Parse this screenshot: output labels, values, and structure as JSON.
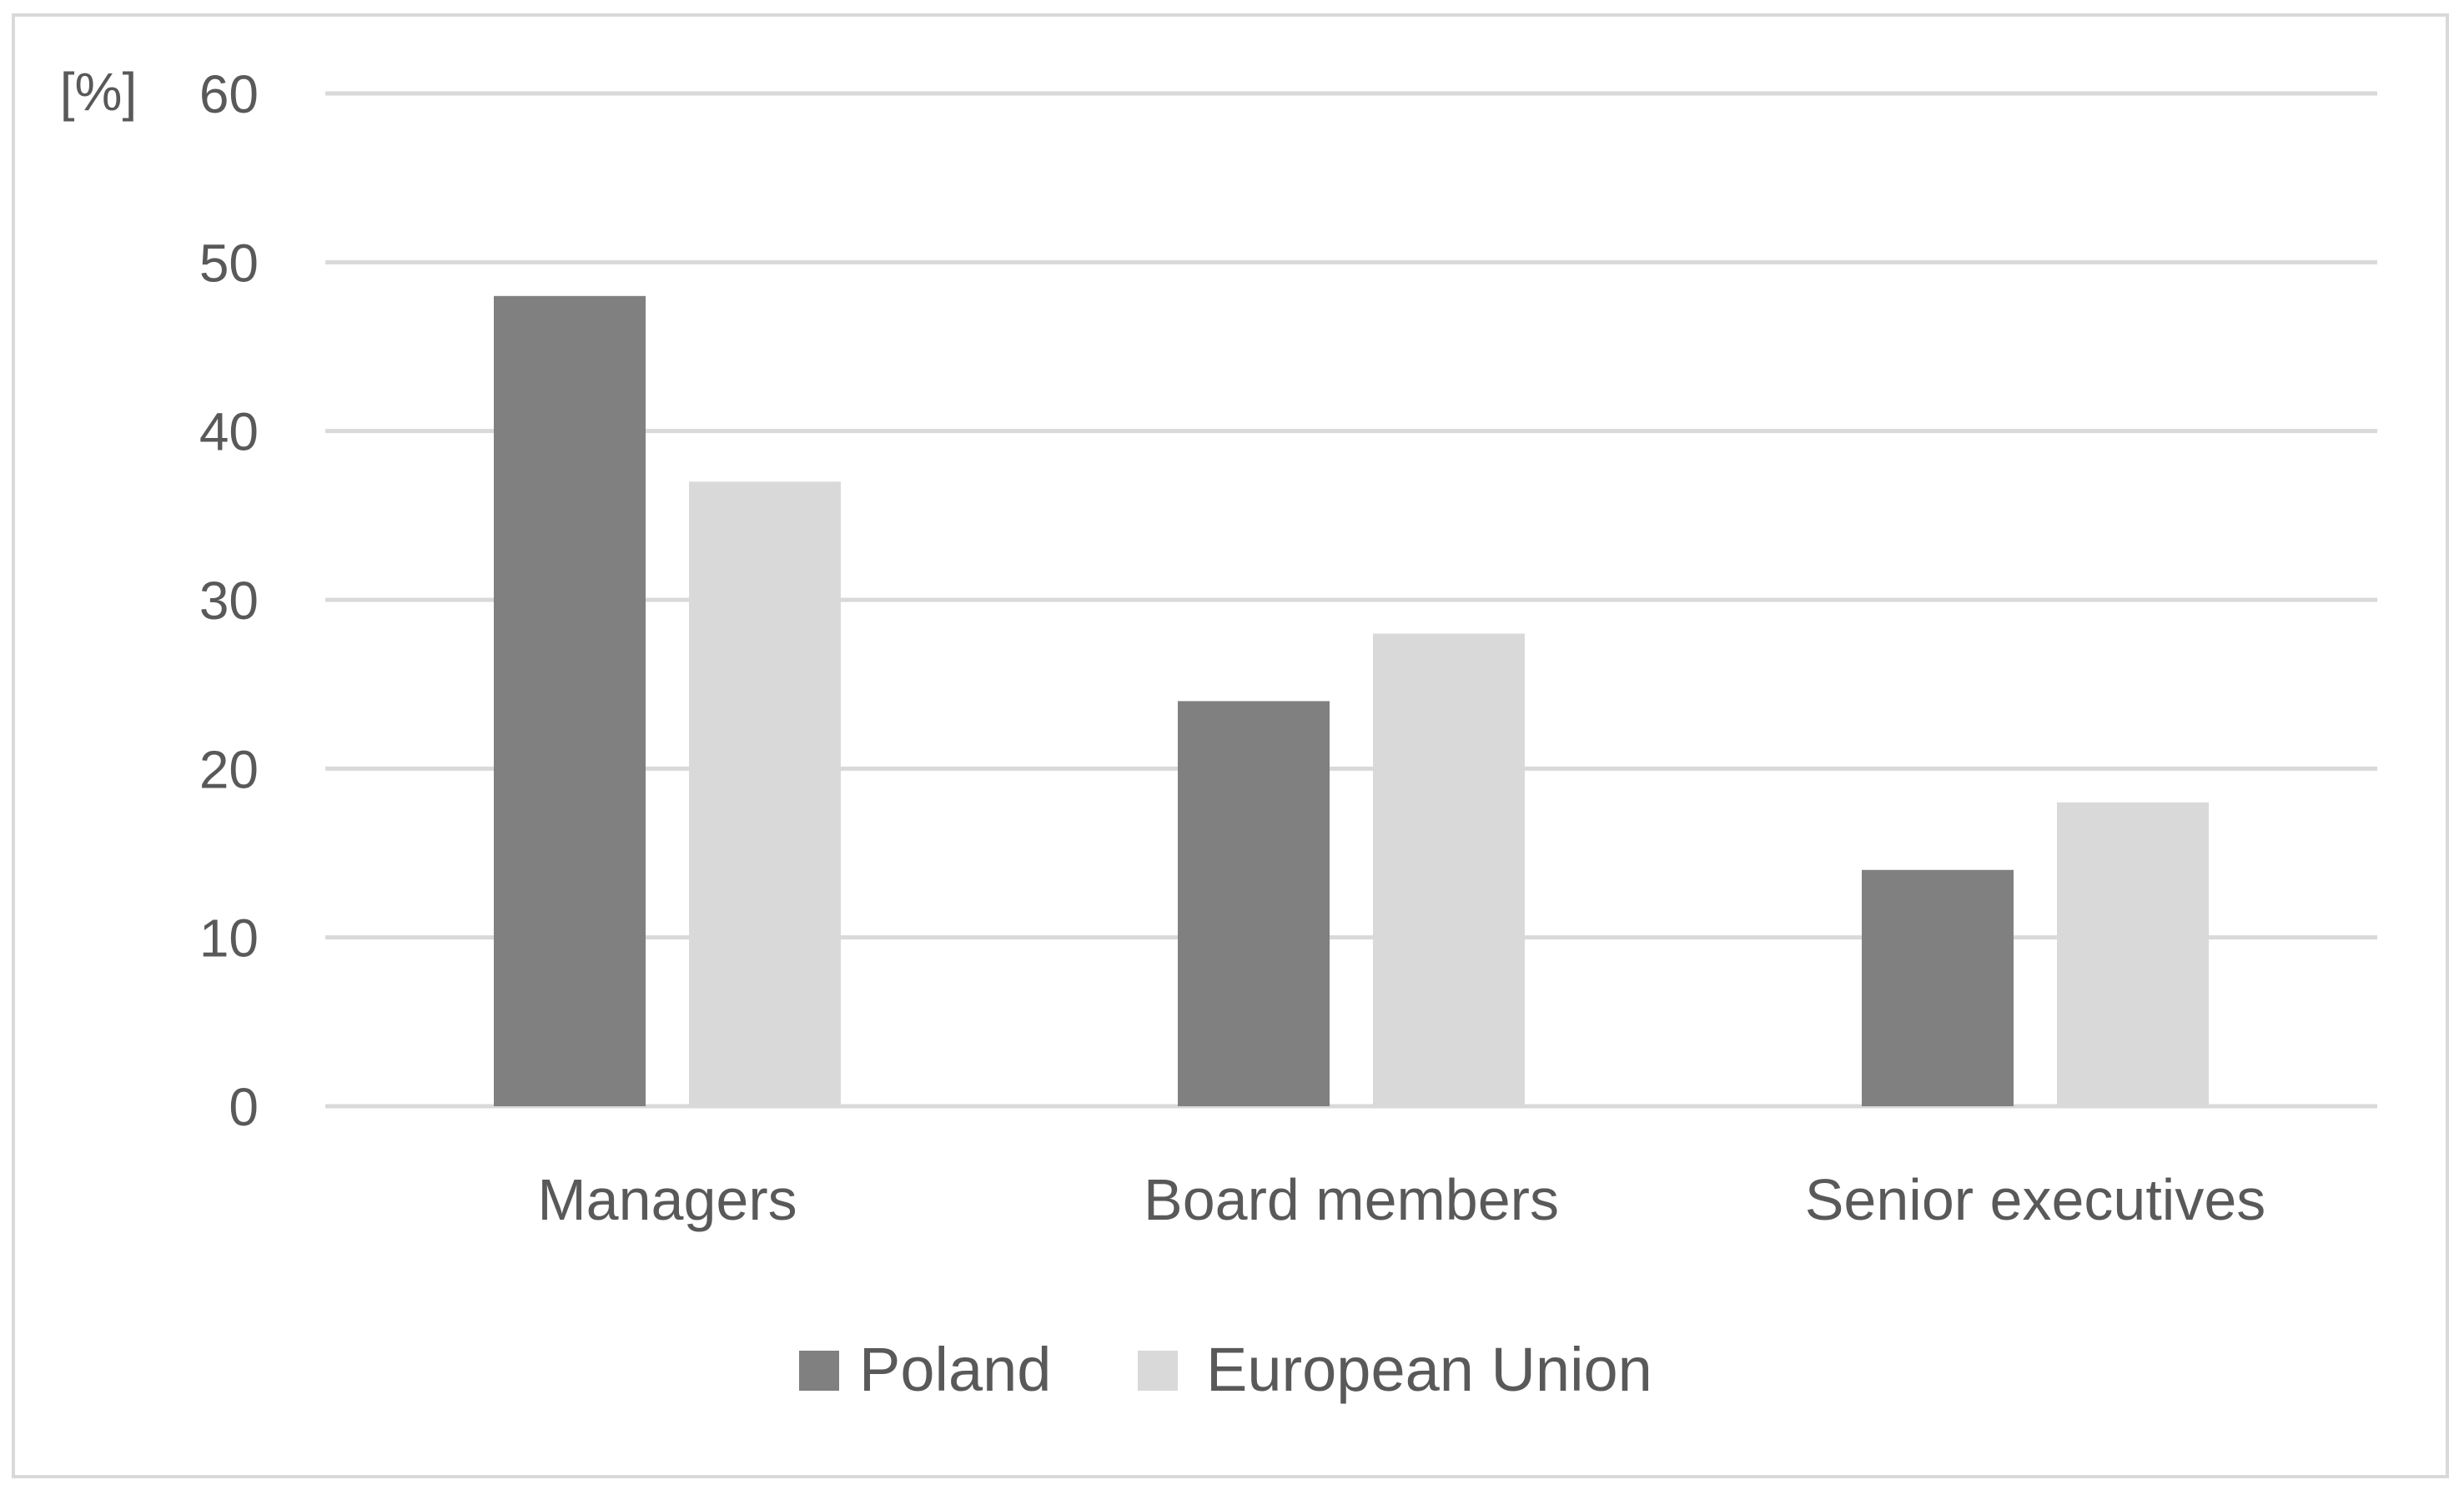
{
  "chart_data": {
    "type": "bar",
    "ylabel": "[%]",
    "categories": [
      "Managers",
      "Board members",
      "Senior executives"
    ],
    "series": [
      {
        "name": "Poland",
        "values": [
          48,
          24,
          14
        ],
        "color": "#808080"
      },
      {
        "name": "European Union",
        "values": [
          37,
          28,
          18
        ],
        "color": "#d9d9d9"
      }
    ],
    "ylim": [
      0,
      60
    ],
    "yticks": [
      0,
      10,
      20,
      30,
      40,
      50,
      60
    ],
    "grid": true,
    "gridline_color": "#d9d9d9",
    "legend_position": "bottom"
  }
}
